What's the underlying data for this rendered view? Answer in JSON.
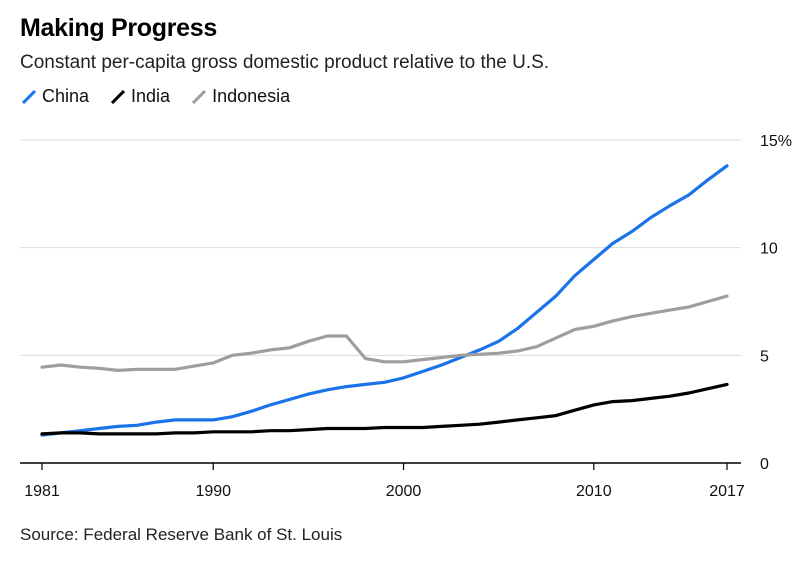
{
  "chart_data": {
    "type": "line",
    "title": "Making Progress",
    "subtitle": "Constant per-capita gross domestic product relative to the U.S.",
    "source": "Source: Federal Reserve Bank of St. Louis",
    "xlim": [
      1981,
      2017
    ],
    "ylim": [
      0,
      15
    ],
    "x_ticks": [
      1981,
      1990,
      2000,
      2010,
      2017
    ],
    "y_ticks": [
      {
        "value": 0,
        "label": "0"
      },
      {
        "value": 5,
        "label": "5"
      },
      {
        "value": 10,
        "label": "10"
      },
      {
        "value": 15,
        "label": "15%"
      }
    ],
    "x": [
      1981,
      1982,
      1983,
      1984,
      1985,
      1986,
      1987,
      1988,
      1989,
      1990,
      1991,
      1992,
      1993,
      1994,
      1995,
      1996,
      1997,
      1998,
      1999,
      2000,
      2001,
      2002,
      2003,
      2004,
      2005,
      2006,
      2007,
      2008,
      2009,
      2010,
      2011,
      2012,
      2013,
      2014,
      2015,
      2016,
      2017
    ],
    "series": [
      {
        "name": "China",
        "color": "#1a73e8",
        "values": [
          1.3,
          1.4,
          1.5,
          1.6,
          1.7,
          1.75,
          1.9,
          2.0,
          2.0,
          2.0,
          2.15,
          2.4,
          2.7,
          2.95,
          3.2,
          3.4,
          3.55,
          3.65,
          3.75,
          3.95,
          4.25,
          4.55,
          4.9,
          5.25,
          5.65,
          6.25,
          7.0,
          7.75,
          8.7,
          9.45,
          10.2,
          10.75,
          11.4,
          11.95,
          12.45,
          13.15,
          13.8
        ]
      },
      {
        "name": "India",
        "color": "#000000",
        "values": [
          1.35,
          1.4,
          1.4,
          1.35,
          1.35,
          1.35,
          1.35,
          1.4,
          1.4,
          1.45,
          1.45,
          1.45,
          1.5,
          1.5,
          1.55,
          1.6,
          1.6,
          1.6,
          1.65,
          1.65,
          1.65,
          1.7,
          1.75,
          1.8,
          1.9,
          2.0,
          2.1,
          2.2,
          2.45,
          2.7,
          2.85,
          2.9,
          3.0,
          3.1,
          3.25,
          3.45,
          3.65
        ]
      },
      {
        "name": "Indonesia",
        "color": "#9e9e9e",
        "values": [
          4.45,
          4.55,
          4.45,
          4.4,
          4.3,
          4.35,
          4.35,
          4.35,
          4.5,
          4.65,
          5.0,
          5.1,
          5.25,
          5.35,
          5.65,
          5.9,
          5.9,
          4.85,
          4.7,
          4.7,
          4.8,
          4.9,
          5.0,
          5.05,
          5.1,
          5.2,
          5.4,
          5.8,
          6.2,
          6.35,
          6.6,
          6.8,
          6.95,
          7.1,
          7.25,
          7.5,
          7.75
        ]
      }
    ]
  }
}
